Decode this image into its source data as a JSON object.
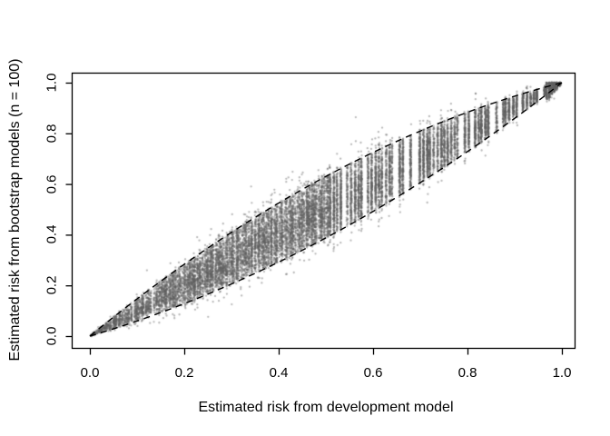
{
  "chart_data": {
    "type": "scatter",
    "title": "",
    "xlabel": "Estimated risk from development model",
    "ylabel": "Estimated risk from bootstrap models (n = 100)",
    "xlim": [
      0,
      1
    ],
    "ylim": [
      0,
      1
    ],
    "grid": false,
    "legend": null,
    "x_ticks": [
      "0.0",
      "0.2",
      "0.4",
      "0.6",
      "0.8",
      "1.0"
    ],
    "y_ticks": [
      "0.0",
      "0.2",
      "0.4",
      "0.6",
      "0.8",
      "1.0"
    ],
    "x_tick_values": [
      0,
      0.2,
      0.4,
      0.6,
      0.8,
      1.0
    ],
    "y_tick_values": [
      0,
      0.2,
      0.4,
      0.6,
      0.8,
      1.0
    ],
    "point_color": "#626262",
    "point_alpha": 0.45,
    "point_radius": 1.15,
    "background": "#ffffff",
    "axis_color": "#000000",
    "description": "Dense cloud of gray semi-transparent points in vertical stripes: bootstrap model risk estimates (100 per subject) vs development model risk. Two black dashed curves bound the cloud, converging at (0,0) and (1,1).",
    "bounds": {
      "model": "y = x + c*x*(1-x)",
      "upper_c": 0.52,
      "lower_c": -0.45,
      "line_color": "#000000",
      "line_width": 1.4,
      "dash_pattern": [
        7,
        5.5
      ],
      "upper_points": [
        [
          0,
          0
        ],
        [
          0.1,
          0.147
        ],
        [
          0.2,
          0.283
        ],
        [
          0.3,
          0.409
        ],
        [
          0.4,
          0.525
        ],
        [
          0.5,
          0.63
        ],
        [
          0.6,
          0.725
        ],
        [
          0.7,
          0.809
        ],
        [
          0.8,
          0.883
        ],
        [
          0.9,
          0.947
        ],
        [
          1,
          1
        ]
      ],
      "lower_points": [
        [
          0,
          0
        ],
        [
          0.1,
          0.06
        ],
        [
          0.2,
          0.128
        ],
        [
          0.3,
          0.206
        ],
        [
          0.4,
          0.292
        ],
        [
          0.5,
          0.388
        ],
        [
          0.6,
          0.492
        ],
        [
          0.7,
          0.606
        ],
        [
          0.8,
          0.728
        ],
        [
          0.9,
          0.86
        ],
        [
          1,
          1
        ]
      ]
    },
    "scatter_generator": {
      "seed": 987654321,
      "uniform_frac": 0.52,
      "sigma_up": 0.26,
      "sigma_low": 0.225,
      "outlier_prob": 0.028,
      "outlier_scale": 1.7,
      "regions": [
        {
          "x_start": 0.004,
          "x_end": 0.5,
          "stripes": 132,
          "spacing_jitter": 0.6,
          "points_base": 16,
          "points_scale": 270,
          "skip_prob": 0.02,
          "spread_mult": 1
        },
        {
          "x_start": 0.503,
          "x_end": 0.962,
          "stripes": 64,
          "spacing_jitter": 0.45,
          "points_base": 55,
          "points_scale": 390,
          "skip_prob": 0.14,
          "spread_mult": 1
        },
        {
          "x_start": 0.968,
          "x_end": 0.995,
          "stripes": 6,
          "spacing_jitter": 0.25,
          "points_base": 120,
          "points_scale": 0,
          "skip_prob": 0,
          "spread_mult": 3
        }
      ]
    }
  }
}
